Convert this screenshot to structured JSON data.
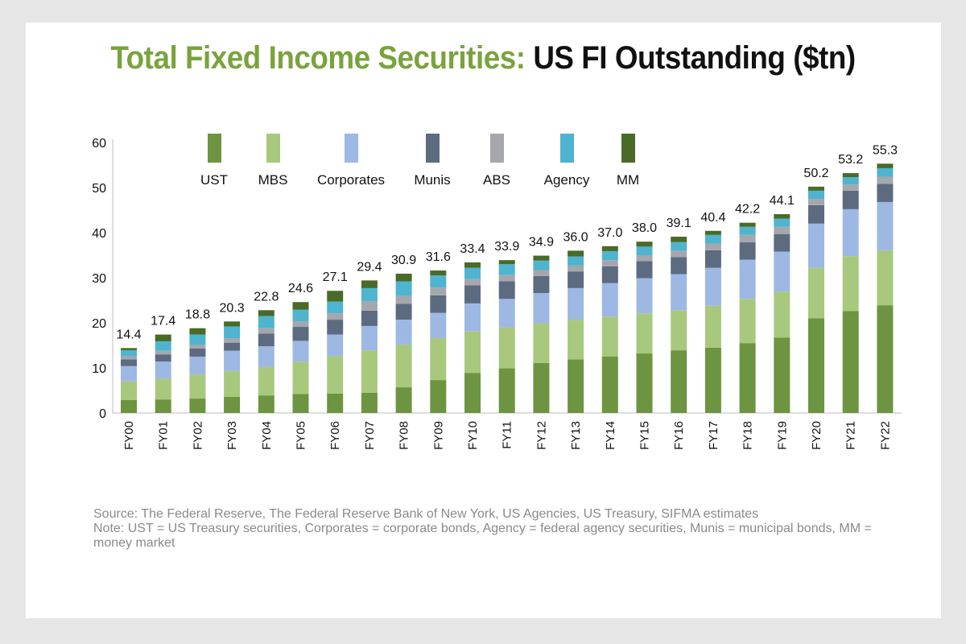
{
  "title": {
    "part1": "Total Fixed Income Securities:",
    "part2": "US FI Outstanding ($tn)"
  },
  "colors": {
    "UST": "#6d9440",
    "MBS": "#a8c87e",
    "Corporates": "#9db8e2",
    "Munis": "#5d6b80",
    "ABS": "#a5a7ac",
    "Agency": "#4eb4d0",
    "MM": "#4a6a28"
  },
  "chart_data": {
    "type": "bar",
    "stacked": true,
    "categories": [
      "FY00",
      "FY01",
      "FY02",
      "FY03",
      "FY04",
      "FY05",
      "FY06",
      "FY07",
      "FY08",
      "FY09",
      "FY10",
      "FY11",
      "FY12",
      "FY13",
      "FY14",
      "FY15",
      "FY16",
      "FY17",
      "FY18",
      "FY19",
      "FY20",
      "FY21",
      "FY22"
    ],
    "totals": [
      "14.4",
      "17.4",
      "18.8",
      "20.3",
      "22.8",
      "24.6",
      "27.1",
      "29.4",
      "30.9",
      "31.6",
      "33.4",
      "33.9",
      "34.9",
      "36.0",
      "37.0",
      "38.0",
      "39.1",
      "40.4",
      "42.2",
      "44.1",
      "50.2",
      "53.2",
      "55.3"
    ],
    "ylim": [
      0,
      60
    ],
    "yticks": [
      0,
      10,
      20,
      30,
      40,
      50,
      60
    ],
    "grid": false,
    "legend_position": "top",
    "series": [
      {
        "name": "UST",
        "values": [
          2.9,
          3.0,
          3.2,
          3.6,
          3.9,
          4.2,
          4.3,
          4.5,
          5.7,
          7.3,
          8.9,
          9.9,
          11.1,
          11.9,
          12.5,
          13.2,
          13.9,
          14.5,
          15.5,
          16.7,
          21.0,
          22.6,
          23.9
        ]
      },
      {
        "name": "MBS",
        "values": [
          4.1,
          4.6,
          5.3,
          5.7,
          6.3,
          7.2,
          8.3,
          9.4,
          9.5,
          9.3,
          9.2,
          9.1,
          8.8,
          8.8,
          8.9,
          8.9,
          8.9,
          9.3,
          9.8,
          10.2,
          11.2,
          12.2,
          12.2
        ]
      },
      {
        "name": "Corporates",
        "values": [
          3.4,
          3.8,
          4.0,
          4.5,
          4.6,
          4.6,
          4.8,
          5.4,
          5.5,
          5.6,
          6.2,
          6.3,
          6.7,
          7.0,
          7.4,
          7.8,
          8.0,
          8.4,
          8.7,
          8.9,
          9.8,
          10.4,
          10.7
        ]
      },
      {
        "name": "Munis",
        "values": [
          1.5,
          1.6,
          1.8,
          1.8,
          2.8,
          3.1,
          3.3,
          3.4,
          3.5,
          3.9,
          4.0,
          3.9,
          3.8,
          3.7,
          3.7,
          3.8,
          3.8,
          3.9,
          3.9,
          3.9,
          4.1,
          4.1,
          4.0
        ]
      },
      {
        "name": "ABS",
        "values": [
          0.7,
          0.8,
          0.8,
          1.0,
          1.2,
          1.2,
          1.4,
          2.1,
          1.8,
          1.7,
          1.4,
          1.4,
          1.3,
          1.3,
          1.4,
          1.3,
          1.4,
          1.5,
          1.6,
          1.6,
          1.4,
          1.4,
          1.6
        ]
      },
      {
        "name": "Agency",
        "values": [
          1.3,
          2.1,
          2.3,
          2.6,
          2.7,
          2.6,
          2.6,
          2.9,
          3.2,
          2.7,
          2.5,
          2.4,
          2.1,
          2.0,
          2.0,
          1.9,
          1.9,
          1.9,
          1.8,
          1.8,
          1.8,
          1.6,
          1.9
        ]
      },
      {
        "name": "MM",
        "values": [
          0.5,
          1.5,
          1.4,
          1.1,
          1.3,
          1.7,
          2.4,
          1.7,
          1.7,
          1.1,
          1.2,
          0.9,
          1.1,
          1.3,
          1.1,
          1.1,
          1.2,
          0.9,
          0.9,
          1.0,
          0.9,
          0.9,
          1.0
        ]
      }
    ]
  },
  "notes": {
    "source": "Source: The Federal Reserve, The Federal Reserve Bank of New York, US Agencies, US Treasury, SIFMA estimates",
    "note": "Note: UST = US Treasury securities, Corporates = corporate bonds, Agency = federal agency securities, Munis = municipal bonds, MM = money market"
  }
}
